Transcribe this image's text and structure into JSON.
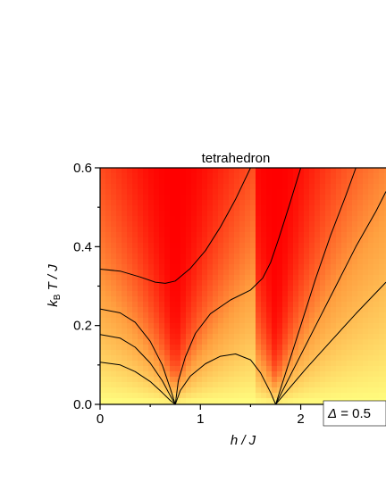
{
  "chart_data": {
    "type": "heatmap",
    "title": "tetrahedron",
    "xlabel": "h / J",
    "ylabel_parts": {
      "k": "k",
      "sub": "B",
      "rest": " T / J"
    },
    "xlim": [
      0,
      2.85
    ],
    "ylim": [
      0,
      0.6
    ],
    "x_ticks": [
      {
        "value": 0,
        "label": "0"
      },
      {
        "value": 1,
        "label": "1"
      },
      {
        "value": 2,
        "label": "2"
      }
    ],
    "y_ticks": [
      {
        "value": 0.0,
        "label": "0.0"
      },
      {
        "value": 0.2,
        "label": "0.2"
      },
      {
        "value": 0.4,
        "label": "0.4"
      },
      {
        "value": 0.6,
        "label": "0.6"
      }
    ],
    "annotation": {
      "symbol": "Δ",
      "text": " = 0.5"
    },
    "critical_fields": [
      0.75,
      1.75
    ],
    "colormap": {
      "low": "#ffff80",
      "mid": "#ffa040",
      "high": "#ff0000"
    },
    "contour_color": "#000000",
    "contours": [
      {
        "id": "c1",
        "points": [
          [
            0,
            0.107
          ],
          [
            0.2,
            0.1
          ],
          [
            0.35,
            0.083
          ],
          [
            0.5,
            0.058
          ],
          [
            0.62,
            0.03
          ],
          [
            0.7,
            0.01
          ],
          [
            0.75,
            0
          ]
        ]
      },
      {
        "id": "c2",
        "points": [
          [
            0,
            0.177
          ],
          [
            0.2,
            0.168
          ],
          [
            0.35,
            0.145
          ],
          [
            0.5,
            0.105
          ],
          [
            0.62,
            0.06
          ],
          [
            0.7,
            0.022
          ],
          [
            0.75,
            0
          ]
        ]
      },
      {
        "id": "c3",
        "points": [
          [
            0,
            0.242
          ],
          [
            0.2,
            0.232
          ],
          [
            0.35,
            0.208
          ],
          [
            0.5,
            0.16
          ],
          [
            0.62,
            0.1
          ],
          [
            0.7,
            0.04
          ],
          [
            0.75,
            0
          ]
        ]
      },
      {
        "id": "c4",
        "points": [
          [
            0.75,
            0
          ],
          [
            0.8,
            0.035
          ],
          [
            0.9,
            0.072
          ],
          [
            1.05,
            0.103
          ],
          [
            1.2,
            0.122
          ],
          [
            1.35,
            0.128
          ],
          [
            1.5,
            0.113
          ],
          [
            1.6,
            0.08
          ],
          [
            1.7,
            0.03
          ],
          [
            1.75,
            0
          ]
        ]
      },
      {
        "id": "c5",
        "points": [
          [
            0.75,
            0
          ],
          [
            0.78,
            0.06
          ],
          [
            0.85,
            0.12
          ],
          [
            0.95,
            0.18
          ],
          [
            1.1,
            0.23
          ],
          [
            1.3,
            0.265
          ],
          [
            1.5,
            0.29
          ],
          [
            1.62,
            0.32
          ],
          [
            1.7,
            0.36
          ],
          [
            1.78,
            0.42
          ],
          [
            1.88,
            0.5
          ],
          [
            2.0,
            0.6
          ]
        ]
      },
      {
        "id": "c6",
        "points": [
          [
            0,
            0.343
          ],
          [
            0.2,
            0.338
          ],
          [
            0.4,
            0.323
          ],
          [
            0.55,
            0.31
          ],
          [
            0.65,
            0.307
          ],
          [
            0.75,
            0.313
          ],
          [
            0.9,
            0.345
          ],
          [
            1.05,
            0.39
          ],
          [
            1.2,
            0.45
          ],
          [
            1.35,
            0.52
          ],
          [
            1.5,
            0.6
          ]
        ]
      },
      {
        "id": "c7",
        "points": [
          [
            1.75,
            0
          ],
          [
            1.85,
            0.08
          ],
          [
            2.0,
            0.2
          ],
          [
            2.15,
            0.32
          ],
          [
            2.3,
            0.43
          ],
          [
            2.45,
            0.53
          ],
          [
            2.55,
            0.6
          ]
        ]
      },
      {
        "id": "c8",
        "points": [
          [
            1.75,
            0
          ],
          [
            1.95,
            0.1
          ],
          [
            2.15,
            0.2
          ],
          [
            2.35,
            0.3
          ],
          [
            2.55,
            0.4
          ],
          [
            2.75,
            0.49
          ],
          [
            2.85,
            0.54
          ]
        ]
      },
      {
        "id": "c9",
        "points": [
          [
            1.75,
            0
          ],
          [
            2.05,
            0.09
          ],
          [
            2.3,
            0.16
          ],
          [
            2.55,
            0.23
          ],
          [
            2.85,
            0.31
          ]
        ]
      }
    ]
  }
}
